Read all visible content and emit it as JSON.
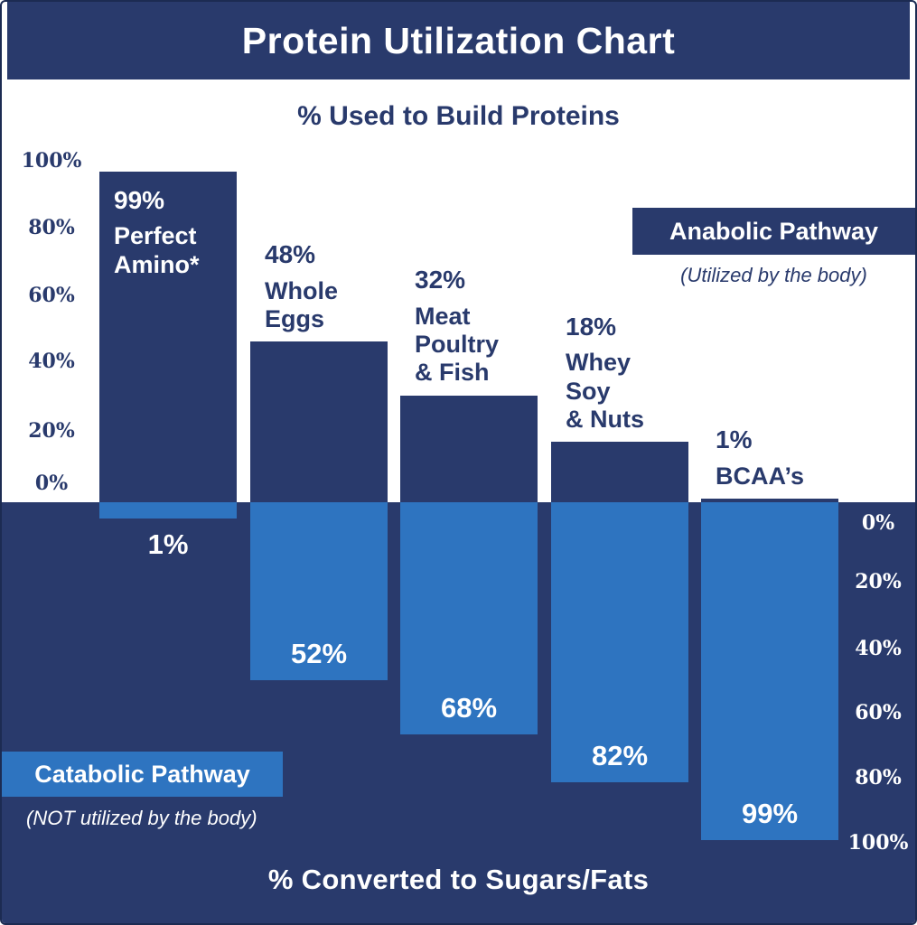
{
  "header": {
    "title": "Protein Utilization Chart"
  },
  "chart_data": {
    "type": "bar",
    "title": "Protein Utilization Chart",
    "top_axis_title": "% Used to Build Proteins",
    "bottom_axis_title": "% Converted to Sugars/Fats",
    "categories": [
      "Perfect Amino*",
      "Whole Eggs",
      "Meat Poultry & Fish",
      "Whey Soy & Nuts",
      "BCAA’s"
    ],
    "series": [
      {
        "name": "Anabolic Pathway (% Used to Build Proteins)",
        "values": [
          99,
          48,
          32,
          18,
          1
        ]
      },
      {
        "name": "Catabolic Pathway (% Converted to Sugars/Fats)",
        "values": [
          1,
          52,
          68,
          82,
          99
        ]
      }
    ],
    "bars": [
      {
        "name": "Perfect\nAmino*",
        "anabolic_label": "99%",
        "anabolic": 99,
        "catabolic_label": "1%",
        "catabolic": 1
      },
      {
        "name": "Whole\nEggs",
        "anabolic_label": "48%",
        "anabolic": 48,
        "catabolic_label": "52%",
        "catabolic": 52
      },
      {
        "name": "Meat\nPoultry\n& Fish",
        "anabolic_label": "32%",
        "anabolic": 32,
        "catabolic_label": "68%",
        "catabolic": 68
      },
      {
        "name": "Whey\nSoy\n& Nuts",
        "anabolic_label": "18%",
        "anabolic": 18,
        "catabolic_label": "82%",
        "catabolic": 82
      },
      {
        "name": "BCAA’s",
        "anabolic_label": "1%",
        "anabolic": 1,
        "catabolic_label": "99%",
        "catabolic": 99
      }
    ],
    "yaxis_left": {
      "ticks": [
        "100%",
        "80%",
        "60%",
        "40%",
        "20%",
        "0%"
      ],
      "range": [
        0,
        100
      ]
    },
    "yaxis_right": {
      "ticks": [
        "0%",
        "20%",
        "40%",
        "60%",
        "80%",
        "100%"
      ],
      "range": [
        0,
        100
      ]
    },
    "legend": {
      "anabolic": {
        "label": "Anabolic Pathway",
        "note": "(Utilized by the body)"
      },
      "catabolic": {
        "label": "Catabolic Pathway",
        "note": "(NOT utilized by the body)"
      }
    },
    "colors": {
      "navy": "#293A6C",
      "light_blue": "#2E74C0",
      "border": "#1C2B52",
      "white": "#FFFFFF"
    },
    "layout_hints": {
      "grid": "off",
      "orientation": "diverging-vertical"
    }
  }
}
